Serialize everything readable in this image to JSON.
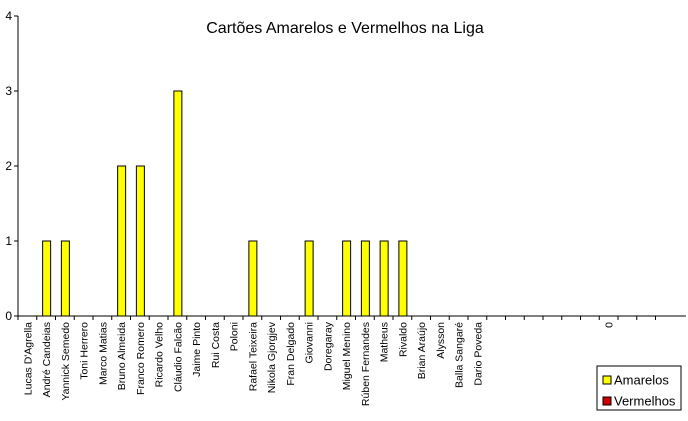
{
  "chart_data": {
    "type": "bar",
    "title": "Cartões Amarelos e Vermelhos na Liga",
    "xlabel": "",
    "ylabel": "",
    "ylim": [
      0,
      4
    ],
    "yticks": [
      "0",
      "1",
      "2",
      "3",
      "4"
    ],
    "grid": false,
    "legend_position": "bottom-right",
    "categories": [
      "Lucas D'Agrella",
      "André Candeias",
      "Yannick Semedo",
      "Toni Herrero",
      "Marco Matias",
      "Bruno Almeida",
      "Franco Romero",
      "Ricardo Velho",
      "Cláudio Falcão",
      "Jaime Pinto",
      "Rui Costa",
      "Poloni",
      "Rafael Teixeira",
      "Nikola Gjorgjev",
      "Fran Delgado",
      "Giovanni",
      "Doregaray",
      "Miguel Menino",
      "Rúben Fernandes",
      "Matheus",
      "Rivaldo",
      "Brian Araújo",
      "Alysson",
      "Balla Sangaré",
      "Dario Poveda",
      "",
      "",
      "",
      "",
      "",
      "",
      "0",
      "",
      ""
    ],
    "series": [
      {
        "name": "Amarelos",
        "color": "#ffff00",
        "values": [
          0,
          1,
          1,
          0,
          0,
          2,
          2,
          0,
          3,
          0,
          0,
          0,
          1,
          0,
          0,
          1,
          0,
          1,
          1,
          1,
          1,
          0,
          0,
          0,
          0,
          0,
          0,
          0,
          0,
          0,
          0,
          0,
          0,
          0
        ]
      },
      {
        "name": "Vermelhos",
        "color": "#cc0000",
        "values": [
          0,
          0,
          0,
          0,
          0,
          0,
          0,
          0,
          0,
          0,
          0,
          0,
          0,
          0,
          0,
          0,
          0,
          0,
          0,
          0,
          0,
          0,
          0,
          0,
          0,
          0,
          0,
          0,
          0,
          0,
          0,
          0,
          0,
          0
        ]
      }
    ]
  }
}
